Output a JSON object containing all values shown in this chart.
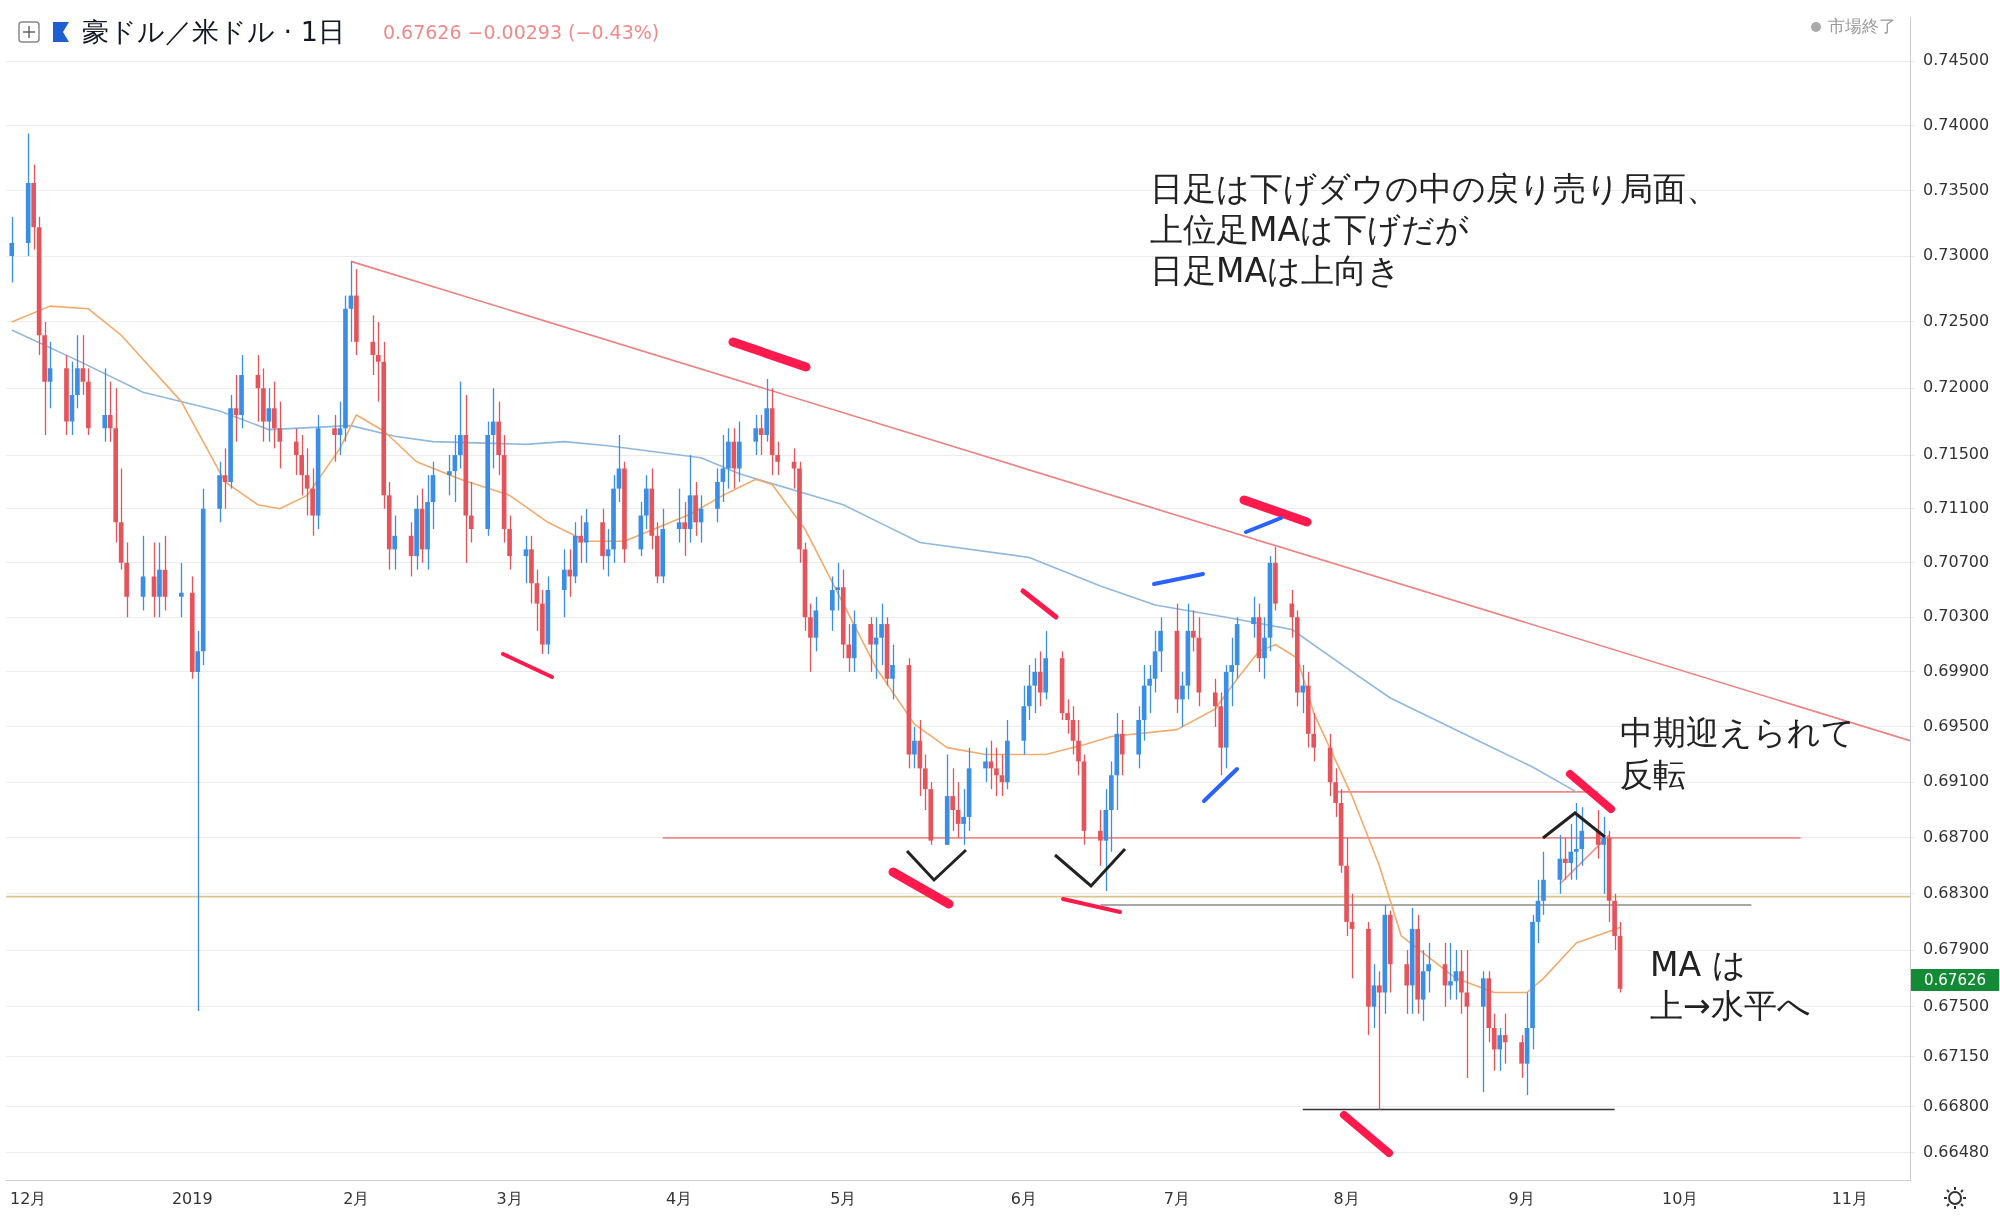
{
  "chart_data": {
    "type": "candlestick",
    "title": "豪ドル／米ドル · 1日",
    "subtitle": "0.67626  −0.00293 (−0.43%)",
    "annotations": [
      "市場終了",
      "日足は下げダウの中の戻り売り局面、",
      "上位足MAは下げだが",
      "日足MAは上向き",
      "中期迎えられて",
      "反転",
      "MA は",
      "上→水平へ",
      "0.67626"
    ],
    "log": "y",
    "grid": "y",
    "xlim": [
      "2018-11-29",
      "2019-11-12"
    ],
    "xticks": [
      {
        "value": "2018-12-03",
        "label": "12月"
      },
      {
        "value": "2019-01-02",
        "label": "2019"
      },
      {
        "value": "2019-02-01",
        "label": "2月"
      },
      {
        "value": "2019-03-01",
        "label": "3月"
      },
      {
        "value": "2019-04-01",
        "label": "4月"
      },
      {
        "value": "2019-05-01",
        "label": "5月"
      },
      {
        "value": "2019-06-03",
        "label": "6月"
      },
      {
        "value": "2019-07-01",
        "label": "7月"
      },
      {
        "value": "2019-08-01",
        "label": "8月"
      },
      {
        "value": "2019-09-02",
        "label": "9月"
      },
      {
        "value": "2019-10-01",
        "label": "10月"
      },
      {
        "value": "2019-11-01",
        "label": "11月"
      }
    ],
    "ylim": [
      0.6629,
      0.7484
    ],
    "yticks": [
      {
        "value": 0.745,
        "label": "0.74500"
      },
      {
        "value": 0.74,
        "label": "0.74000"
      },
      {
        "value": 0.735,
        "label": "0.73500"
      },
      {
        "value": 0.73,
        "label": "0.73000"
      },
      {
        "value": 0.725,
        "label": "0.72500"
      },
      {
        "value": 0.72,
        "label": "0.72000"
      },
      {
        "value": 0.715,
        "label": "0.71500"
      },
      {
        "value": 0.711,
        "label": "0.71100"
      },
      {
        "value": 0.707,
        "label": "0.70700"
      },
      {
        "value": 0.703,
        "label": "0.70300"
      },
      {
        "value": 0.699,
        "label": "0.69900"
      },
      {
        "value": 0.695,
        "label": "0.69500"
      },
      {
        "value": 0.691,
        "label": "0.69100"
      },
      {
        "value": 0.687,
        "label": "0.68700"
      },
      {
        "value": 0.683,
        "label": "0.68300"
      },
      {
        "value": 0.679,
        "label": "0.67900"
      },
      {
        "value": 0.675,
        "label": "0.67500"
      },
      {
        "value": 0.6715,
        "label": "0.67150"
      },
      {
        "value": 0.668,
        "label": "0.66800"
      },
      {
        "value": 0.6648,
        "label": "0.66480"
      }
    ],
    "ref_lines": [
      {
        "axis": "y",
        "value": 0.6828,
        "color": "#d9c48a"
      }
    ],
    "series": [
      {
        "type": "line",
        "color": "#f2ab6d",
        "x": [
          "2018-11-30",
          "2018-12-07",
          "2018-12-14",
          "2018-12-20",
          "2018-12-31",
          "2019-01-08",
          "2019-01-14",
          "2019-01-18",
          "2019-01-23",
          "2019-01-29",
          "2019-02-01",
          "2019-02-06",
          "2019-02-12",
          "2019-02-20",
          "2019-03-01",
          "2019-03-08",
          "2019-03-15",
          "2019-03-22",
          "2019-04-03",
          "2019-04-09",
          "2019-04-15",
          "2019-04-18",
          "2019-04-24",
          "2019-05-01",
          "2019-05-07",
          "2019-05-14",
          "2019-05-20",
          "2019-05-27",
          "2019-06-03",
          "2019-06-07",
          "2019-06-14",
          "2019-06-19",
          "2019-07-01",
          "2019-07-08",
          "2019-07-12",
          "2019-07-16",
          "2019-07-19",
          "2019-07-23",
          "2019-07-26",
          "2019-08-02",
          "2019-08-07",
          "2019-08-11",
          "2019-08-21",
          "2019-08-28",
          "2019-09-03",
          "2019-09-06",
          "2019-09-12",
          "2019-09-20"
        ],
        "values": [
          0.725,
          0.7262,
          0.726,
          0.724,
          0.719,
          0.713,
          0.7113,
          0.711,
          0.712,
          0.7155,
          0.718,
          0.7168,
          0.7145,
          0.7132,
          0.712,
          0.71,
          0.7086,
          0.7086,
          0.7106,
          0.712,
          0.7132,
          0.7128,
          0.7095,
          0.704,
          0.6993,
          0.6952,
          0.6935,
          0.693,
          0.693,
          0.693,
          0.6937,
          0.6943,
          0.6948,
          0.6963,
          0.6985,
          0.7005,
          0.701,
          0.7,
          0.696,
          0.69,
          0.685,
          0.68,
          0.677,
          0.676,
          0.676,
          0.677,
          0.6795,
          0.6806
        ]
      },
      {
        "type": "line",
        "color": "#8fb8de",
        "x": [
          "2018-11-30",
          "2018-12-12",
          "2018-12-24",
          "2019-01-07",
          "2019-01-16",
          "2019-01-31",
          "2019-02-08",
          "2019-02-15",
          "2019-03-04",
          "2019-03-11",
          "2019-03-19",
          "2019-04-05",
          "2019-04-12",
          "2019-05-01",
          "2019-05-08",
          "2019-05-15",
          "2019-06-04",
          "2019-06-17",
          "2019-06-27",
          "2019-07-10",
          "2019-07-22",
          "2019-08-01",
          "2019-08-09",
          "2019-08-23",
          "2019-09-04",
          "2019-09-12"
        ],
        "values": [
          0.7244,
          0.7221,
          0.7197,
          0.7183,
          0.7169,
          0.7172,
          0.7164,
          0.716,
          0.7158,
          0.716,
          0.7157,
          0.7148,
          0.7136,
          0.7113,
          0.7099,
          0.7085,
          0.7074,
          0.7053,
          0.7039,
          0.703,
          0.7021,
          0.6993,
          0.6971,
          0.6944,
          0.6921,
          0.6903
        ]
      },
      {
        "type": "line",
        "color": "#ef8080",
        "x": [
          "2019-01-31",
          "2019-11-12"
        ],
        "values": [
          0.7296,
          0.694
        ]
      },
      {
        "type": "line",
        "color": "#ef8a8a",
        "x": [
          "2019-03-29",
          "2019-10-23"
        ],
        "values": [
          0.687,
          0.687
        ]
      },
      {
        "type": "line",
        "color": "#8a8a8a",
        "x": [
          "2019-06-17",
          "2019-10-14"
        ],
        "values": [
          0.6822,
          0.6822
        ]
      },
      {
        "type": "line",
        "color": "#ef8a8a",
        "x": [
          "2019-07-30",
          "2019-09-16"
        ],
        "values": [
          0.6903,
          0.6903
        ]
      },
      {
        "type": "line",
        "color": "#333333",
        "x": [
          "2019-07-24",
          "2019-09-19"
        ],
        "values": [
          0.6678,
          0.6678
        ]
      },
      {
        "type": "line",
        "color": "#ef8a8a",
        "x": [
          "2019-09-09",
          "2019-09-18"
        ],
        "values": [
          0.6837,
          0.6872
        ]
      },
      {
        "color": "#3a8ee6",
        "x": [
          "2018-11-30",
          "2018-12-03",
          "2018-12-07",
          "2018-12-11",
          "2018-12-12",
          "2018-12-17",
          "2018-12-24",
          "2018-12-27",
          "2018-12-31",
          "2019-01-03",
          "2019-01-04",
          "2019-01-07",
          "2019-01-09",
          "2019-01-11",
          "2019-01-16",
          "2019-01-25",
          "2019-01-29",
          "2019-01-30",
          "2019-01-31",
          "2019-02-08",
          "2019-02-12",
          "2019-02-14",
          "2019-02-15",
          "2019-02-18",
          "2019-02-19",
          "2019-02-20",
          "2019-02-25",
          "2019-02-26",
          "2019-03-04",
          "2019-03-08",
          "2019-03-11",
          "2019-03-13",
          "2019-03-15",
          "2019-03-19",
          "2019-03-20",
          "2019-03-21",
          "2019-03-25",
          "2019-03-26",
          "2019-03-29",
          "2019-04-01",
          "2019-04-03",
          "2019-04-05",
          "2019-04-08",
          "2019-04-09",
          "2019-04-10",
          "2019-04-12",
          "2019-04-15",
          "2019-04-17",
          "2019-04-26",
          "2019-04-29",
          "2019-04-30",
          "2019-05-03",
          "2019-05-07",
          "2019-05-08",
          "2019-05-10",
          "2019-05-14",
          "2019-05-20",
          "2019-05-23",
          "2019-05-24",
          "2019-05-27",
          "2019-05-31",
          "2019-06-03",
          "2019-06-04",
          "2019-06-05",
          "2019-06-07",
          "2019-06-18",
          "2019-06-19",
          "2019-06-20",
          "2019-06-24",
          "2019-06-25",
          "2019-06-26",
          "2019-06-27",
          "2019-06-28",
          "2019-07-02",
          "2019-07-03",
          "2019-07-10",
          "2019-07-11",
          "2019-07-12",
          "2019-07-15",
          "2019-07-17",
          "2019-07-18",
          "2019-07-24",
          "2019-08-06",
          "2019-08-08",
          "2019-08-13",
          "2019-08-15",
          "2019-08-16",
          "2019-08-20",
          "2019-08-21",
          "2019-08-26",
          "2019-08-29",
          "2019-09-03",
          "2019-09-04",
          "2019-09-05",
          "2019-09-06",
          "2019-09-09",
          "2019-09-11",
          "2019-09-12",
          "2019-09-13",
          "2019-09-17"
        ],
        "ohlc": [
          [
            0.73,
            0.733,
            0.728,
            0.731
          ],
          [
            0.731,
            0.7394,
            0.73,
            0.7356
          ],
          [
            0.7205,
            0.7235,
            0.7185,
            0.7215
          ],
          [
            0.7175,
            0.722,
            0.7165,
            0.7195
          ],
          [
            0.7195,
            0.724,
            0.7185,
            0.7215
          ],
          [
            0.717,
            0.7215,
            0.716,
            0.718
          ],
          [
            0.7045,
            0.709,
            0.7035,
            0.706
          ],
          [
            0.7045,
            0.7085,
            0.703,
            0.7065
          ],
          [
            0.7045,
            0.707,
            0.703,
            0.7048
          ],
          [
            0.699,
            0.702,
            0.6747,
            0.7005
          ],
          [
            0.7005,
            0.7125,
            0.6995,
            0.711
          ],
          [
            0.711,
            0.7145,
            0.71,
            0.7135
          ],
          [
            0.713,
            0.7195,
            0.7125,
            0.7185
          ],
          [
            0.718,
            0.7225,
            0.717,
            0.721
          ],
          [
            0.7175,
            0.72,
            0.716,
            0.7185
          ],
          [
            0.7105,
            0.718,
            0.7095,
            0.717
          ],
          [
            0.7165,
            0.719,
            0.715,
            0.717
          ],
          [
            0.717,
            0.727,
            0.716,
            0.726
          ],
          [
            0.726,
            0.7296,
            0.7235,
            0.727
          ],
          [
            0.708,
            0.7105,
            0.7065,
            0.709
          ],
          [
            0.7075,
            0.712,
            0.7065,
            0.711
          ],
          [
            0.708,
            0.7135,
            0.7065,
            0.7115
          ],
          [
            0.7115,
            0.7145,
            0.7095,
            0.7135
          ],
          [
            0.7135,
            0.715,
            0.712,
            0.7138
          ],
          [
            0.7138,
            0.7165,
            0.7115,
            0.715
          ],
          [
            0.715,
            0.7205,
            0.714,
            0.7165
          ],
          [
            0.7095,
            0.7175,
            0.709,
            0.7165
          ],
          [
            0.7165,
            0.72,
            0.714,
            0.7175
          ],
          [
            0.7075,
            0.709,
            0.7055,
            0.708
          ],
          [
            0.701,
            0.706,
            0.7003,
            0.705
          ],
          [
            0.705,
            0.708,
            0.703,
            0.7065
          ],
          [
            0.706,
            0.71,
            0.7055,
            0.709
          ],
          [
            0.7085,
            0.711,
            0.707,
            0.71
          ],
          [
            0.7075,
            0.7095,
            0.706,
            0.708
          ],
          [
            0.708,
            0.7135,
            0.707,
            0.7125
          ],
          [
            0.7125,
            0.7165,
            0.7115,
            0.714
          ],
          [
            0.708,
            0.7115,
            0.7075,
            0.7105
          ],
          [
            0.7105,
            0.7135,
            0.7095,
            0.7125
          ],
          [
            0.706,
            0.711,
            0.7055,
            0.7095
          ],
          [
            0.7095,
            0.7125,
            0.7085,
            0.71
          ],
          [
            0.7095,
            0.715,
            0.7085,
            0.712
          ],
          [
            0.71,
            0.712,
            0.7085,
            0.711
          ],
          [
            0.711,
            0.714,
            0.71,
            0.713
          ],
          [
            0.713,
            0.7165,
            0.7115,
            0.714
          ],
          [
            0.714,
            0.717,
            0.7125,
            0.716
          ],
          [
            0.714,
            0.7175,
            0.713,
            0.716
          ],
          [
            0.716,
            0.718,
            0.715,
            0.717
          ],
          [
            0.7165,
            0.7207,
            0.716,
            0.7185
          ],
          [
            0.7015,
            0.7045,
            0.7005,
            0.7035
          ],
          [
            0.7035,
            0.706,
            0.702,
            0.705
          ],
          [
            0.705,
            0.707,
            0.7035,
            0.7052
          ],
          [
            0.7,
            0.7035,
            0.699,
            0.7025
          ],
          [
            0.701,
            0.703,
            0.6985,
            0.7015
          ],
          [
            0.7015,
            0.704,
            0.6995,
            0.7025
          ],
          [
            0.6985,
            0.701,
            0.697,
            0.6995
          ],
          [
            0.693,
            0.695,
            0.692,
            0.694
          ],
          [
            0.6865,
            0.693,
            0.6865,
            0.69
          ],
          [
            0.688,
            0.6905,
            0.6865,
            0.6885
          ],
          [
            0.6885,
            0.6935,
            0.6875,
            0.692
          ],
          [
            0.692,
            0.6935,
            0.691,
            0.6925
          ],
          [
            0.691,
            0.6955,
            0.6905,
            0.694
          ],
          [
            0.694,
            0.698,
            0.693,
            0.6965
          ],
          [
            0.6965,
            0.6995,
            0.6955,
            0.698
          ],
          [
            0.698,
            0.7,
            0.696,
            0.699
          ],
          [
            0.6975,
            0.702,
            0.697,
            0.7
          ],
          [
            0.6868,
            0.6905,
            0.6832,
            0.689
          ],
          [
            0.689,
            0.6925,
            0.686,
            0.6915
          ],
          [
            0.6915,
            0.696,
            0.689,
            0.6945
          ],
          [
            0.693,
            0.6965,
            0.692,
            0.6955
          ],
          [
            0.6955,
            0.6995,
            0.694,
            0.698
          ],
          [
            0.698,
            0.6995,
            0.696,
            0.6985
          ],
          [
            0.6985,
            0.702,
            0.6975,
            0.7005
          ],
          [
            0.7005,
            0.703,
            0.699,
            0.702
          ],
          [
            0.697,
            0.699,
            0.695,
            0.698
          ],
          [
            0.698,
            0.704,
            0.697,
            0.702
          ],
          [
            0.6935,
            0.6995,
            0.692,
            0.699
          ],
          [
            0.699,
            0.7015,
            0.6965,
            0.6995
          ],
          [
            0.6995,
            0.703,
            0.6985,
            0.7025
          ],
          [
            0.7025,
            0.7045,
            0.7015,
            0.703
          ],
          [
            0.7,
            0.703,
            0.6985,
            0.7015
          ],
          [
            0.7015,
            0.7075,
            0.7005,
            0.707
          ],
          [
            0.6975,
            0.6995,
            0.696,
            0.698
          ],
          [
            0.675,
            0.678,
            0.6735,
            0.6765
          ],
          [
            0.676,
            0.6822,
            0.6745,
            0.6815
          ],
          [
            0.6765,
            0.682,
            0.6745,
            0.6805
          ],
          [
            0.6755,
            0.679,
            0.674,
            0.6775
          ],
          [
            0.6775,
            0.6795,
            0.676,
            0.678
          ],
          [
            0.6765,
            0.6795,
            0.6755,
            0.6768
          ],
          [
            0.6768,
            0.679,
            0.6755,
            0.6775
          ],
          [
            0.675,
            0.6775,
            0.669,
            0.677
          ],
          [
            0.672,
            0.6735,
            0.6705,
            0.673
          ],
          [
            0.671,
            0.676,
            0.6688,
            0.6735
          ],
          [
            0.6735,
            0.6815,
            0.672,
            0.681
          ],
          [
            0.681,
            0.684,
            0.6795,
            0.6825
          ],
          [
            0.6825,
            0.686,
            0.6815,
            0.684
          ],
          [
            0.684,
            0.6872,
            0.683,
            0.6855
          ],
          [
            0.6852,
            0.688,
            0.684,
            0.686
          ],
          [
            0.686,
            0.6895,
            0.684,
            0.6862
          ],
          [
            0.6862,
            0.6892,
            0.685,
            0.6875
          ],
          [
            0.6865,
            0.6885,
            0.683,
            0.687
          ]
        ]
      },
      {
        "color": "#e5545a",
        "x": [
          "2018-12-04",
          "2018-12-05",
          "2018-12-06",
          "2018-12-10",
          "2018-12-13",
          "2018-12-14",
          "2018-12-18",
          "2018-12-19",
          "2018-12-20",
          "2018-12-21",
          "2018-12-26",
          "2018-12-28",
          "2019-01-02",
          "2019-01-08",
          "2019-01-10",
          "2019-01-14",
          "2019-01-15",
          "2019-01-17",
          "2019-01-18",
          "2019-01-21",
          "2019-01-22",
          "2019-01-23",
          "2019-01-24",
          "2019-01-28",
          "2019-02-01",
          "2019-02-04",
          "2019-02-05",
          "2019-02-06",
          "2019-02-07",
          "2019-02-11",
          "2019-02-13",
          "2019-02-21",
          "2019-02-22",
          "2019-02-27",
          "2019-02-28",
          "2019-03-01",
          "2019-03-05",
          "2019-03-06",
          "2019-03-07",
          "2019-03-12",
          "2019-03-14",
          "2019-03-18",
          "2019-03-22",
          "2019-03-27",
          "2019-03-28",
          "2019-04-02",
          "2019-04-04",
          "2019-04-11",
          "2019-04-16",
          "2019-04-18",
          "2019-04-19",
          "2019-04-22",
          "2019-04-23",
          "2019-04-24",
          "2019-04-25",
          "2019-05-01",
          "2019-05-02",
          "2019-05-06",
          "2019-05-09",
          "2019-05-13",
          "2019-05-15",
          "2019-05-16",
          "2019-05-17",
          "2019-05-21",
          "2019-05-22",
          "2019-05-28",
          "2019-05-29",
          "2019-05-30",
          "2019-06-06",
          "2019-06-10",
          "2019-06-11",
          "2019-06-12",
          "2019-06-13",
          "2019-06-14",
          "2019-06-17",
          "2019-06-21",
          "2019-07-01",
          "2019-07-04",
          "2019-07-05",
          "2019-07-08",
          "2019-07-09",
          "2019-07-16",
          "2019-07-19",
          "2019-07-22",
          "2019-07-23",
          "2019-07-25",
          "2019-07-26",
          "2019-07-29",
          "2019-07-30",
          "2019-07-31",
          "2019-08-01",
          "2019-08-02",
          "2019-08-05",
          "2019-08-07",
          "2019-08-09",
          "2019-08-12",
          "2019-08-14",
          "2019-08-19",
          "2019-08-22",
          "2019-08-23",
          "2019-08-27",
          "2019-08-28",
          "2019-08-30",
          "2019-09-02",
          "2019-09-10",
          "2019-09-16",
          "2019-09-18",
          "2019-09-19",
          "2019-09-20"
        ],
        "ohlc": [
          [
            0.7356,
            0.737,
            0.7305,
            0.7322
          ],
          [
            0.7322,
            0.733,
            0.7225,
            0.724
          ],
          [
            0.724,
            0.725,
            0.7165,
            0.7205
          ],
          [
            0.7215,
            0.7225,
            0.7165,
            0.7175
          ],
          [
            0.7215,
            0.724,
            0.7195,
            0.7205
          ],
          [
            0.7205,
            0.7215,
            0.7165,
            0.717
          ],
          [
            0.718,
            0.7205,
            0.716,
            0.717
          ],
          [
            0.717,
            0.72,
            0.7085,
            0.71
          ],
          [
            0.71,
            0.714,
            0.7065,
            0.707
          ],
          [
            0.707,
            0.7085,
            0.703,
            0.7045
          ],
          [
            0.706,
            0.7085,
            0.703,
            0.7045
          ],
          [
            0.7065,
            0.709,
            0.7035,
            0.7045
          ],
          [
            0.7048,
            0.706,
            0.6985,
            0.699
          ],
          [
            0.7135,
            0.7155,
            0.711,
            0.713
          ],
          [
            0.7185,
            0.721,
            0.716,
            0.718
          ],
          [
            0.721,
            0.7225,
            0.7175,
            0.72
          ],
          [
            0.72,
            0.7215,
            0.716,
            0.7175
          ],
          [
            0.7185,
            0.7205,
            0.7155,
            0.717
          ],
          [
            0.717,
            0.719,
            0.714,
            0.716
          ],
          [
            0.716,
            0.717,
            0.7135,
            0.715
          ],
          [
            0.715,
            0.7165,
            0.712,
            0.7135
          ],
          [
            0.7135,
            0.7155,
            0.7105,
            0.7125
          ],
          [
            0.7125,
            0.714,
            0.709,
            0.7105
          ],
          [
            0.717,
            0.718,
            0.7145,
            0.7165
          ],
          [
            0.727,
            0.729,
            0.7225,
            0.7235
          ],
          [
            0.7235,
            0.7255,
            0.721,
            0.7225
          ],
          [
            0.7225,
            0.725,
            0.719,
            0.722
          ],
          [
            0.722,
            0.7235,
            0.711,
            0.712
          ],
          [
            0.712,
            0.713,
            0.7065,
            0.708
          ],
          [
            0.709,
            0.71,
            0.706,
            0.7075
          ],
          [
            0.711,
            0.7125,
            0.707,
            0.708
          ],
          [
            0.7165,
            0.7195,
            0.707,
            0.7105
          ],
          [
            0.7105,
            0.713,
            0.7085,
            0.7095
          ],
          [
            0.7175,
            0.719,
            0.7135,
            0.715
          ],
          [
            0.715,
            0.7165,
            0.7085,
            0.7095
          ],
          [
            0.7095,
            0.7105,
            0.7065,
            0.7075
          ],
          [
            0.708,
            0.709,
            0.704,
            0.7055
          ],
          [
            0.7055,
            0.7065,
            0.702,
            0.704
          ],
          [
            0.704,
            0.705,
            0.7003,
            0.701
          ],
          [
            0.7065,
            0.708,
            0.7045,
            0.706
          ],
          [
            0.709,
            0.7105,
            0.707,
            0.7085
          ],
          [
            0.71,
            0.711,
            0.7065,
            0.7075
          ],
          [
            0.714,
            0.7145,
            0.707,
            0.708
          ],
          [
            0.7125,
            0.714,
            0.708,
            0.709
          ],
          [
            0.709,
            0.71,
            0.7055,
            0.706
          ],
          [
            0.71,
            0.7115,
            0.7075,
            0.7095
          ],
          [
            0.712,
            0.713,
            0.709,
            0.71
          ],
          [
            0.716,
            0.717,
            0.7125,
            0.714
          ],
          [
            0.717,
            0.718,
            0.715,
            0.7165
          ],
          [
            0.7185,
            0.72,
            0.7135,
            0.715
          ],
          [
            0.715,
            0.716,
            0.7135,
            0.7145
          ],
          [
            0.7145,
            0.7155,
            0.7125,
            0.714
          ],
          [
            0.714,
            0.7145,
            0.707,
            0.708
          ],
          [
            0.708,
            0.7085,
            0.702,
            0.703
          ],
          [
            0.703,
            0.704,
            0.699,
            0.7015
          ],
          [
            0.7052,
            0.7065,
            0.7,
            0.701
          ],
          [
            0.701,
            0.7025,
            0.699,
            0.7
          ],
          [
            0.7025,
            0.703,
            0.699,
            0.701
          ],
          [
            0.7025,
            0.703,
            0.698,
            0.6985
          ],
          [
            0.6995,
            0.7,
            0.692,
            0.693
          ],
          [
            0.694,
            0.6955,
            0.69,
            0.692
          ],
          [
            0.692,
            0.693,
            0.689,
            0.6905
          ],
          [
            0.6905,
            0.691,
            0.6865,
            0.6868
          ],
          [
            0.69,
            0.692,
            0.6875,
            0.689
          ],
          [
            0.689,
            0.691,
            0.687,
            0.688
          ],
          [
            0.6925,
            0.694,
            0.6905,
            0.692
          ],
          [
            0.692,
            0.6935,
            0.69,
            0.6915
          ],
          [
            0.6915,
            0.693,
            0.69,
            0.691
          ],
          [
            0.699,
            0.7005,
            0.6965,
            0.6975
          ],
          [
            0.7,
            0.7005,
            0.6955,
            0.696
          ],
          [
            0.696,
            0.697,
            0.6945,
            0.6955
          ],
          [
            0.6955,
            0.6965,
            0.693,
            0.694
          ],
          [
            0.694,
            0.6955,
            0.6915,
            0.6925
          ],
          [
            0.6925,
            0.693,
            0.6865,
            0.6875
          ],
          [
            0.6875,
            0.689,
            0.685,
            0.6868
          ],
          [
            0.6945,
            0.6955,
            0.6915,
            0.693
          ],
          [
            0.702,
            0.704,
            0.696,
            0.697
          ],
          [
            0.702,
            0.7035,
            0.7005,
            0.7015
          ],
          [
            0.7015,
            0.703,
            0.6965,
            0.6975
          ],
          [
            0.6975,
            0.6985,
            0.695,
            0.6965
          ],
          [
            0.6965,
            0.6975,
            0.6915,
            0.6935
          ],
          [
            0.703,
            0.704,
            0.699,
            0.7
          ],
          [
            0.707,
            0.7082,
            0.7035,
            0.704
          ],
          [
            0.704,
            0.705,
            0.7015,
            0.703
          ],
          [
            0.703,
            0.7035,
            0.6965,
            0.6975
          ],
          [
            0.698,
            0.699,
            0.6935,
            0.6945
          ],
          [
            0.6945,
            0.696,
            0.6925,
            0.6935
          ],
          [
            0.6935,
            0.6945,
            0.69,
            0.691
          ],
          [
            0.691,
            0.692,
            0.6885,
            0.6895
          ],
          [
            0.6895,
            0.6905,
            0.6845,
            0.685
          ],
          [
            0.685,
            0.687,
            0.68,
            0.681
          ],
          [
            0.681,
            0.683,
            0.677,
            0.6805
          ],
          [
            0.6805,
            0.681,
            0.673,
            0.675
          ],
          [
            0.6765,
            0.6775,
            0.6678,
            0.676
          ],
          [
            0.6815,
            0.6818,
            0.676,
            0.678
          ],
          [
            0.678,
            0.679,
            0.6745,
            0.6765
          ],
          [
            0.6805,
            0.6815,
            0.6745,
            0.6755
          ],
          [
            0.678,
            0.6795,
            0.675,
            0.6765
          ],
          [
            0.6775,
            0.679,
            0.6745,
            0.676
          ],
          [
            0.676,
            0.679,
            0.67,
            0.675
          ],
          [
            0.677,
            0.6775,
            0.6725,
            0.6735
          ],
          [
            0.6735,
            0.6745,
            0.6705,
            0.672
          ],
          [
            0.673,
            0.6745,
            0.671,
            0.6725
          ],
          [
            0.6725,
            0.673,
            0.67,
            0.671
          ],
          [
            0.6855,
            0.687,
            0.684,
            0.6852
          ],
          [
            0.6875,
            0.689,
            0.6855,
            0.6865
          ],
          [
            0.687,
            0.6875,
            0.681,
            0.6825
          ],
          [
            0.6825,
            0.683,
            0.679,
            0.68
          ],
          [
            0.68,
            0.681,
            0.676,
            0.67626
          ]
        ]
      }
    ]
  }
}
